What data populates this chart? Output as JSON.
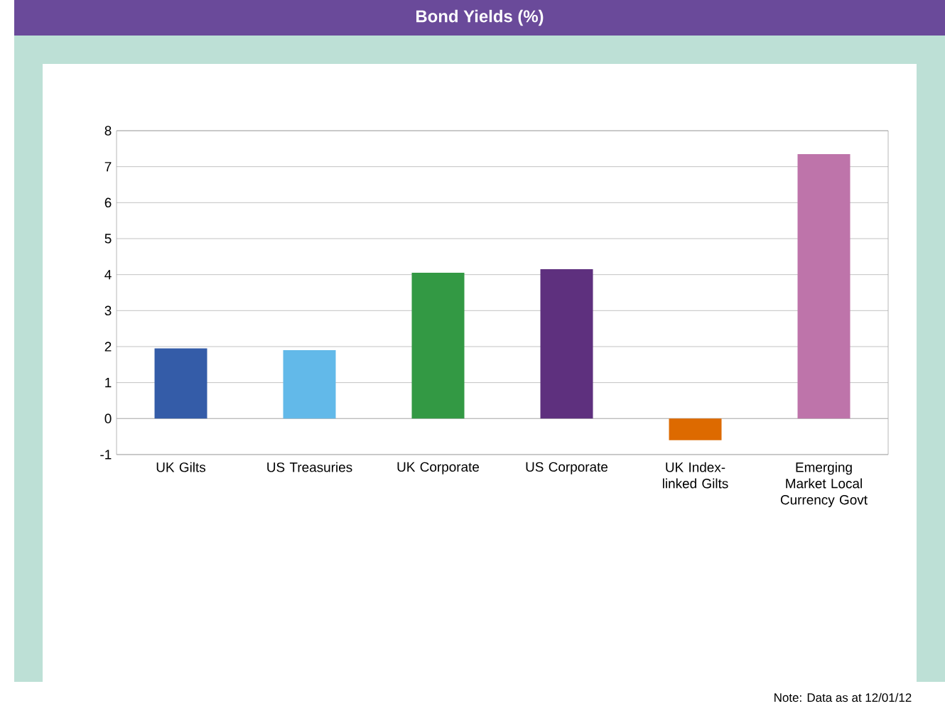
{
  "chart_data": {
    "type": "bar",
    "title": "Bond Yields (%)",
    "categories": [
      "UK Gilts",
      "US Treasuries",
      "UK Corporate",
      "US Corporate",
      "UK Index-linked Gilts",
      "Emerging Market Local Currency Govt"
    ],
    "values": [
      1.95,
      1.9,
      4.05,
      4.15,
      -0.6,
      7.35
    ],
    "colors": [
      "#345ca8",
      "#62b9e9",
      "#339944",
      "#5e307e",
      "#dd6a00",
      "#be74aa"
    ],
    "ylim": [
      -1,
      8
    ],
    "yticks": [
      -1,
      0,
      1,
      2,
      3,
      4,
      5,
      6,
      7,
      8
    ],
    "grid": "y",
    "annotations": [
      "Note: Data as at 12/01/12"
    ]
  }
}
